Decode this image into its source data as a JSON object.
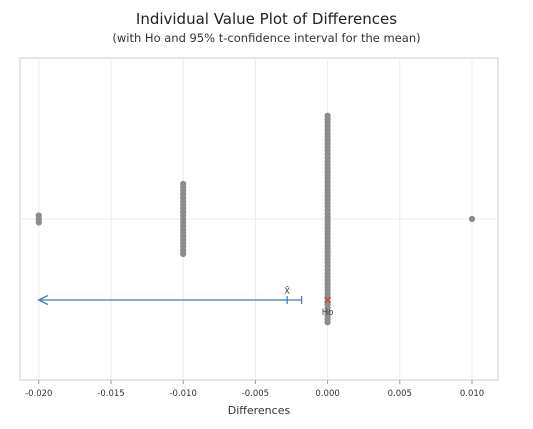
{
  "chart_data": {
    "type": "scatter",
    "title": "Individual Value Plot of Differences",
    "subtitle": "(with Ho and 95% t-confidence interval for the mean)",
    "xlabel": "Differences",
    "xlim": [
      -0.0213,
      0.0118
    ],
    "x_ticks": [
      "-0.020",
      "-0.015",
      "-0.010",
      "-0.005",
      "0.000",
      "0.005",
      "0.010"
    ],
    "grid": true,
    "point_color": "#8c8c8c",
    "ci_color": "#3a7bbf",
    "ho_color": "#d94040",
    "clusters": [
      {
        "x": -0.02,
        "count": 3
      },
      {
        "x": -0.01,
        "count": 21
      },
      {
        "x": 0.0,
        "count": 60
      },
      {
        "x": 0.01,
        "count": 1
      }
    ],
    "ci": {
      "lower": -0.02,
      "upper": -0.0018,
      "mean": -0.0028,
      "lower_open": true
    },
    "ho": {
      "value": 0.0,
      "label": "Ho"
    },
    "mean_label": "X̄"
  }
}
